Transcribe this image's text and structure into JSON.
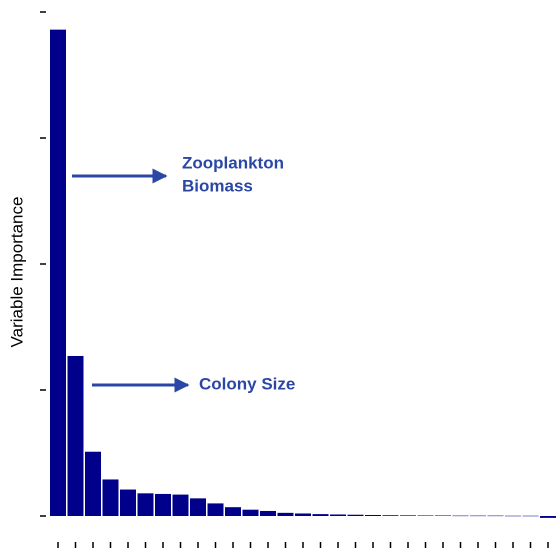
{
  "chart_data": {
    "type": "bar",
    "ylabel": "Variable Importance",
    "categories": [
      null,
      null,
      null,
      null,
      null,
      null,
      null,
      null,
      null,
      null,
      null,
      null,
      null,
      null,
      null,
      null,
      null,
      null,
      null,
      null,
      null,
      null,
      null,
      null,
      null,
      null,
      null,
      null,
      null
    ],
    "values": [
      3.86,
      1.27,
      0.51,
      0.29,
      0.21,
      0.18,
      0.175,
      0.17,
      0.14,
      0.1,
      0.07,
      0.05,
      0.04,
      0.025,
      0.02,
      0.015,
      0.012,
      0.01,
      0.008,
      0.006,
      0.005,
      0.004,
      0.004,
      0.003,
      0.003,
      0.003,
      0.002,
      0.002,
      -0.015
    ],
    "color": "#00008b",
    "ylim": [
      0,
      4
    ],
    "yticks": [
      0,
      1,
      2,
      3,
      4
    ],
    "grid": false,
    "annotations": [
      {
        "lines": [
          "Zooplankton",
          "Biomass"
        ],
        "color": "#2b47a6"
      },
      {
        "lines": [
          "Colony Size"
        ],
        "color": "#2b47a6"
      }
    ]
  }
}
